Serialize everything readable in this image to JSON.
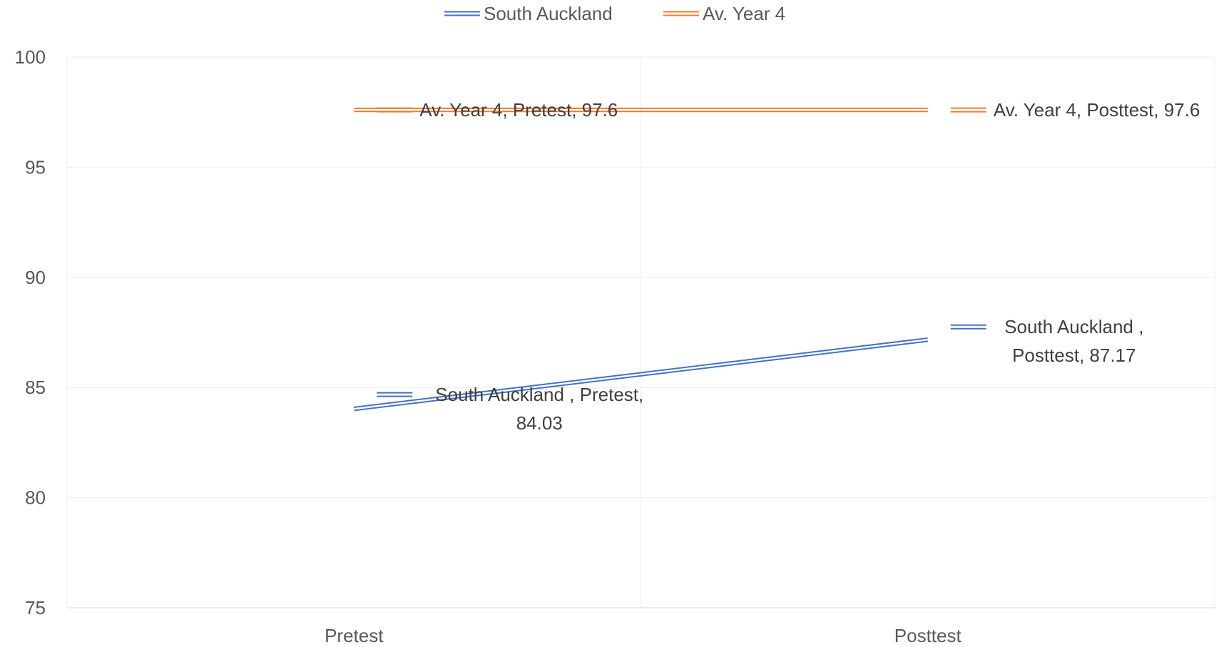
{
  "chart_data": {
    "type": "line",
    "categories": [
      "Pretest",
      "Posttest"
    ],
    "series": [
      {
        "name": "South Auckland",
        "values": [
          84.03,
          87.17
        ],
        "color": "#4472C4",
        "data_labels": [
          [
            "South Auckland , Pretest,",
            "84.03"
          ],
          [
            "South Auckland ,",
            "Posttest, 87.17"
          ]
        ]
      },
      {
        "name": "Av. Year 4",
        "values": [
          97.6,
          97.6
        ],
        "color": "#ED7D31",
        "data_labels": [
          [
            "Av. Year 4, Pretest, 97.6"
          ],
          [
            "Av. Year 4, Posttest, 97.6"
          ]
        ]
      }
    ],
    "y_ticks": [
      "75",
      "80",
      "85",
      "90",
      "95",
      "100"
    ],
    "ylim": [
      75,
      100
    ],
    "grid": true,
    "legend_position": "top"
  }
}
